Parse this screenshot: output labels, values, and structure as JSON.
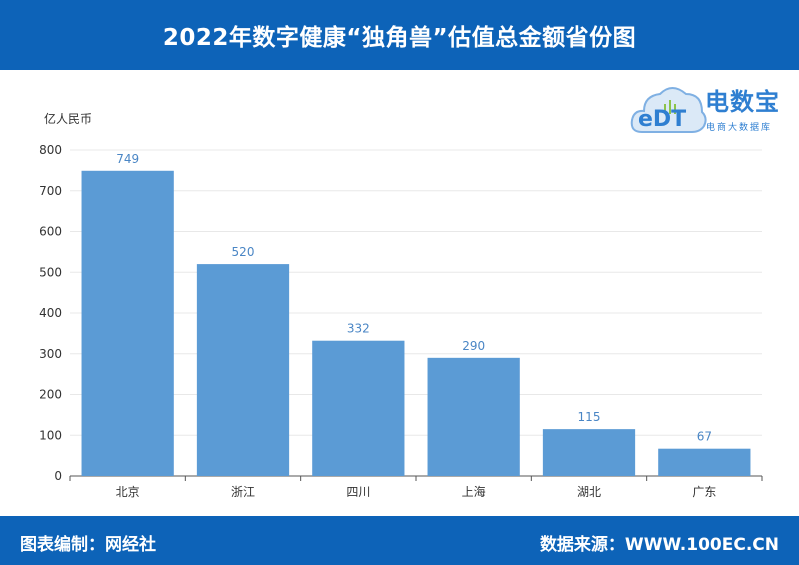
{
  "header": {
    "title": "2022年数字健康“独角兽”估值总金额省份图"
  },
  "logo": {
    "main_text": "电数宝",
    "sub_text": "电商大数据库",
    "icon_text": "eDT"
  },
  "footer": {
    "left_text": "图表编制：网经社",
    "right_text": "数据来源：WWW.100EC.CN"
  },
  "chart_data": {
    "type": "bar",
    "ylabel": "亿人民币",
    "categories": [
      "北京",
      "浙江",
      "四川",
      "上海",
      "湖北",
      "广东"
    ],
    "values": [
      749,
      520,
      332,
      290,
      115,
      67
    ],
    "ylim": [
      0,
      800
    ],
    "yticks": [
      0,
      100,
      200,
      300,
      400,
      500,
      600,
      700,
      800
    ],
    "grid": true,
    "bar_color": "#5b9bd5",
    "label_color": "#4a86c5"
  }
}
